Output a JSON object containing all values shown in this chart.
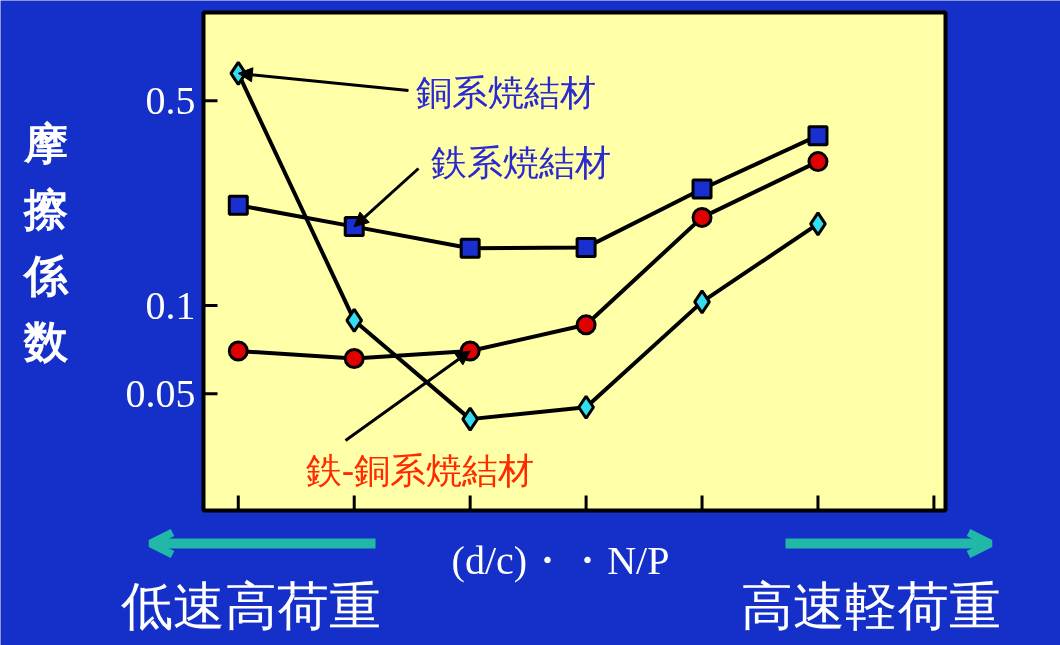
{
  "chart_data": {
    "type": "line",
    "xlabel": "(d/c)・・N/P",
    "ylabel": "摩擦係数",
    "log": "y",
    "categories": [
      null,
      null,
      null,
      null,
      null,
      null,
      null
    ],
    "ylim": [
      0.02,
      1
    ],
    "yticks": [
      0.05,
      0.1,
      0.5
    ],
    "series": [
      {
        "color": "#000000",
        "colors": [
          "#33ddee",
          "#33ddee",
          "#33ddee",
          "#33ddee",
          "#33ddee",
          "#33ddee",
          null
        ],
        "marker": "diamond",
        "values": [
          0.62,
          0.089,
          0.041,
          0.045,
          0.103,
          0.19,
          null
        ]
      },
      {
        "color": "#000000",
        "colors": [
          "#1a2fd0",
          "#1a2fd0",
          "#1a2fd0",
          "#1a2fd0",
          "#1a2fd0",
          "#1a2fd0",
          null
        ],
        "marker": "square",
        "values": [
          0.22,
          0.186,
          0.157,
          0.158,
          0.25,
          0.38,
          null
        ]
      },
      {
        "color": "#000000",
        "colors": [
          "#e00000",
          "#e00000",
          "#e00000",
          "#e00000",
          "#e00000",
          "#e00000",
          null
        ],
        "marker": "circle",
        "values": [
          0.07,
          0.066,
          0.07,
          0.086,
          0.2,
          0.31,
          null
        ]
      }
    ],
    "annotations": [
      "銅系焼結材",
      "鉄系焼結材",
      "鉄-銅系焼結材",
      "低速高荷重",
      "高速軽荷重"
    ]
  }
}
